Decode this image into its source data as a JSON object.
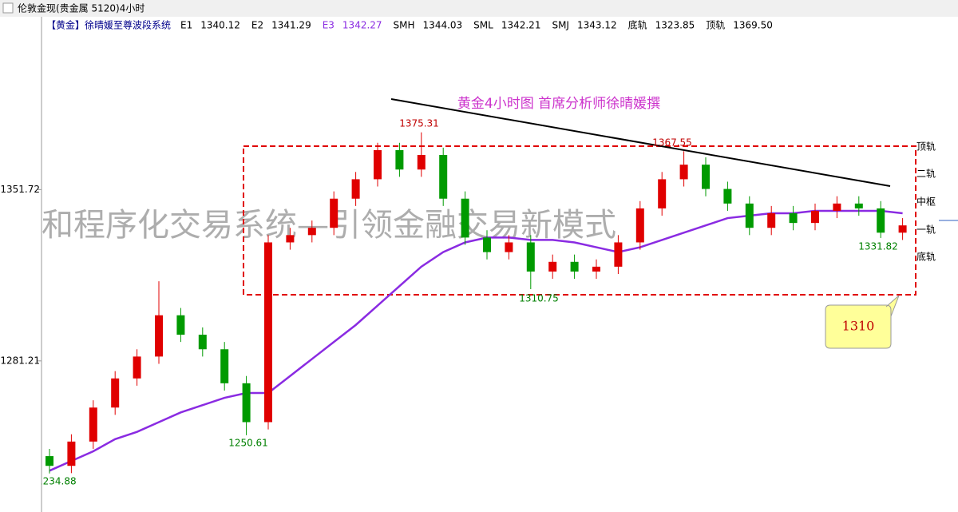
{
  "window_title": "伦敦金现(贵金属 5120)4小时",
  "indicator": {
    "name": "【黄金】徐晴媛至尊波段系统",
    "items": [
      {
        "label": "E1",
        "value": "1340.12"
      },
      {
        "label": "E2",
        "value": "1341.29"
      },
      {
        "label": "E3",
        "value": "1342.27"
      },
      {
        "label": "SMH",
        "value": "1344.03"
      },
      {
        "label": "SML",
        "value": "1342.21"
      },
      {
        "label": "SMJ",
        "value": "1343.12"
      },
      {
        "label": "底轨",
        "value": "1323.85"
      },
      {
        "label": "顶轨",
        "value": "1369.50"
      }
    ]
  },
  "chart_data": {
    "type": "candlestick",
    "title": "黄金4小时图  首席分析师徐晴媛撰",
    "banner": "和程序化交易系统—引领金融交易新模式",
    "callout": "1310",
    "channel_labels": [
      "顶轨",
      "二轨",
      "中枢",
      "一轨",
      "底轨"
    ],
    "ylim": [
      1219,
      1415
    ],
    "yticks": [
      1281.21,
      1351.72
    ],
    "up_color": "#e00000",
    "down_color": "#009a00",
    "ma_color": "#8a2be2",
    "open": [
      1242,
      1238,
      1248,
      1262,
      1274,
      1283,
      1300,
      1292,
      1286,
      1272,
      1256,
      1330,
      1333,
      1336,
      1348,
      1356,
      1368,
      1360,
      1366,
      1348,
      1332,
      1326,
      1330,
      1318,
      1322,
      1318,
      1320,
      1330,
      1344,
      1356,
      1362,
      1352,
      1346,
      1336,
      1342,
      1338,
      1343,
      1346,
      1344,
      1334
    ],
    "high": [
      1245,
      1251,
      1265,
      1277,
      1286,
      1314,
      1303,
      1295,
      1289,
      1275,
      1333,
      1336,
      1339,
      1351,
      1359,
      1371,
      1371,
      1375.31,
      1369,
      1351,
      1335,
      1333,
      1333,
      1325,
      1325,
      1323,
      1333,
      1347,
      1359,
      1367.55,
      1365,
      1355,
      1349,
      1345,
      1345,
      1346,
      1349,
      1349,
      1347,
      1340
    ],
    "low": [
      1234.88,
      1235,
      1245,
      1259,
      1271,
      1280,
      1289,
      1283,
      1269,
      1250.61,
      1253,
      1327,
      1330,
      1333,
      1345,
      1353,
      1357,
      1357,
      1345,
      1329,
      1323,
      1323,
      1310.75,
      1315,
      1315,
      1315,
      1317,
      1327,
      1341,
      1353,
      1349,
      1343,
      1333,
      1333,
      1335,
      1335,
      1340,
      1341,
      1331.82,
      1331
    ],
    "close": [
      1238,
      1248,
      1262,
      1274,
      1283,
      1300,
      1292,
      1286,
      1272,
      1256,
      1330,
      1333,
      1336,
      1348,
      1356,
      1368,
      1360,
      1366,
      1348,
      1332,
      1326,
      1330,
      1318,
      1322,
      1318,
      1320,
      1330,
      1344,
      1356,
      1362,
      1352,
      1346,
      1336,
      1342,
      1338,
      1343,
      1346,
      1344,
      1334,
      1337
    ],
    "ma": [
      1236,
      1240,
      1244,
      1249,
      1252,
      1256,
      1260,
      1263,
      1266,
      1268,
      1268,
      1275,
      1282,
      1289,
      1296,
      1304,
      1312,
      1320,
      1326,
      1330,
      1332,
      1332,
      1331,
      1331,
      1330,
      1328,
      1326,
      1328,
      1331,
      1334,
      1337,
      1340,
      1341,
      1342,
      1342,
      1343,
      1343,
      1343,
      1343,
      1342
    ]
  }
}
